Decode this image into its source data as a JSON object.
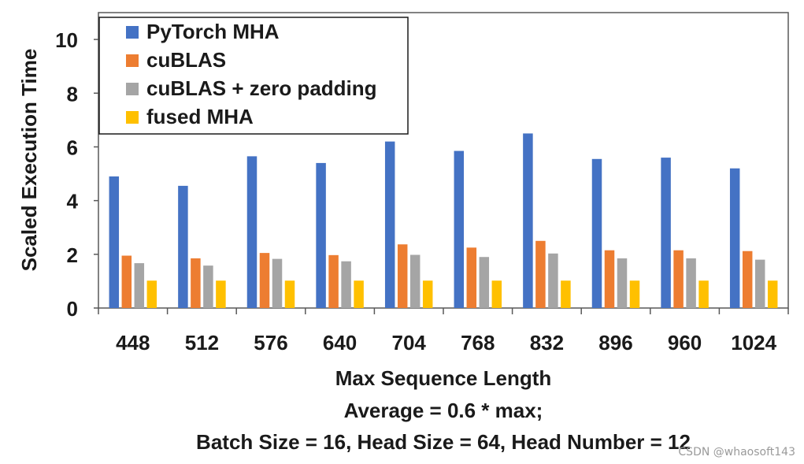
{
  "chart_data": {
    "type": "bar",
    "title": "",
    "xlabel": "Max Sequence Length",
    "ylabel": "Scaled Execution Time",
    "ylim": [
      0,
      11
    ],
    "yticks": [
      "0",
      "2",
      "4",
      "6",
      "8",
      "10"
    ],
    "categories": [
      "448",
      "512",
      "576",
      "640",
      "704",
      "768",
      "832",
      "896",
      "960",
      "1024"
    ],
    "series": [
      {
        "name": "PyTorch MHA",
        "color": "#4472C4",
        "values": [
          4.9,
          4.55,
          5.65,
          5.4,
          6.2,
          5.85,
          6.5,
          5.55,
          5.6,
          5.2
        ]
      },
      {
        "name": "cuBLAS",
        "color": "#ED7D31",
        "values": [
          1.95,
          1.85,
          2.05,
          1.97,
          2.37,
          2.25,
          2.5,
          2.15,
          2.15,
          2.12
        ]
      },
      {
        "name": "cuBLAS + zero padding",
        "color": "#A5A5A5",
        "values": [
          1.67,
          1.58,
          1.83,
          1.74,
          1.98,
          1.9,
          2.03,
          1.85,
          1.85,
          1.8
        ]
      },
      {
        "name": "fused MHA",
        "color": "#FFC000",
        "values": [
          1.02,
          1.02,
          1.02,
          1.02,
          1.02,
          1.02,
          1.02,
          1.02,
          1.02,
          1.02
        ]
      }
    ],
    "legend_position": "top-left",
    "grid": false,
    "notes": [
      "Average = 0.6 * max;",
      "Batch Size = 16, Head Size = 64, Head Number = 12"
    ]
  },
  "watermark": "CSDN @whaosoft143"
}
